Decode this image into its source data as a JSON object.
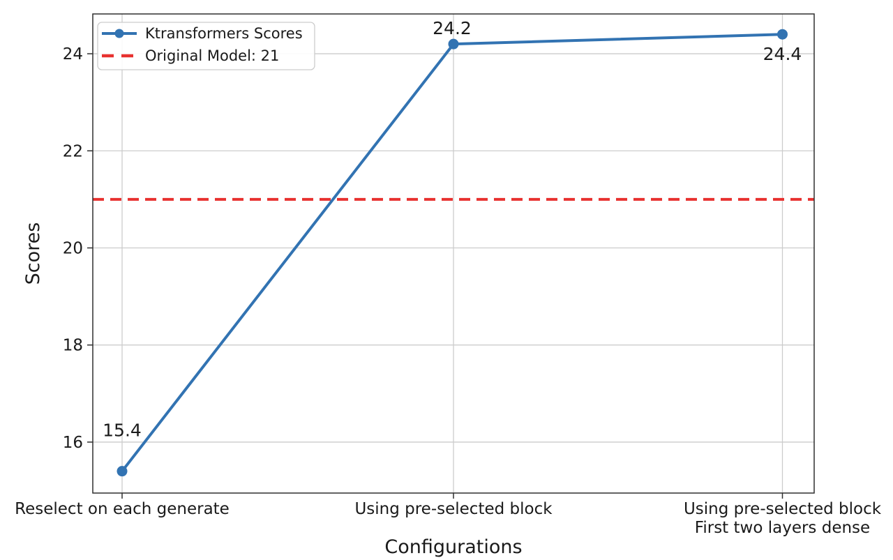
{
  "chart_data": {
    "type": "line",
    "title": "",
    "xlabel": "Configurations",
    "ylabel": "Scores",
    "categories": [
      "Reselect on each generate",
      "Using pre-selected block",
      "Using pre-selected block\nFirst two layers dense"
    ],
    "series": [
      {
        "name": "Ktransformers Scores",
        "values": [
          15.4,
          24.2,
          24.4
        ],
        "color": "#3273b2",
        "marker": "circle"
      }
    ],
    "point_labels": [
      "15.4",
      "24.2",
      "24.4"
    ],
    "reference_line": {
      "label": "Original Model: 21",
      "value": 21,
      "color": "#e8312f",
      "style": "dashed"
    },
    "yticks": [
      16,
      18,
      20,
      22,
      24
    ],
    "ylim": [
      14.95,
      24.82
    ],
    "grid": true,
    "legend": {
      "position": "upper left",
      "entries": [
        "Ktransformers Scores",
        "Original Model: 21"
      ]
    },
    "colors": {
      "grid": "#cccccc",
      "spine": "#2f2f2f",
      "text": "#1a1a1a",
      "background": "#ffffff"
    }
  }
}
